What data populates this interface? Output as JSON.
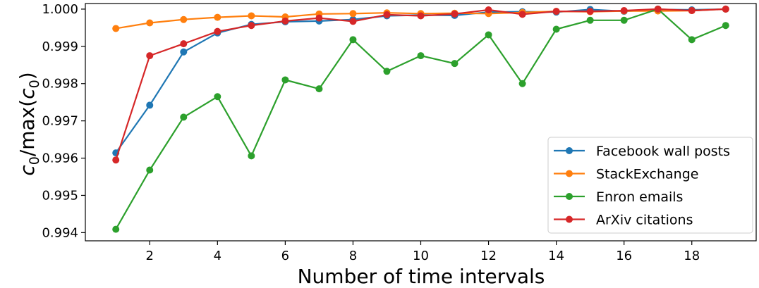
{
  "chart_data": {
    "type": "line",
    "xlabel": "Number of time intervals",
    "ylabel_base": "c",
    "ylabel_sub": "0",
    "ylabel_mid": "/max(",
    "ylabel_end": ")",
    "xlim": [
      0.1,
      19.9
    ],
    "ylim": [
      0.99378,
      1.00015
    ],
    "xticks": [
      2,
      4,
      6,
      8,
      10,
      12,
      14,
      16,
      18
    ],
    "yticks": [
      0.994,
      0.995,
      0.996,
      0.997,
      0.998,
      0.999,
      1.0
    ],
    "ytick_labels": [
      "0.994",
      "0.995",
      "0.996",
      "0.997",
      "0.998",
      "0.999",
      "1.000"
    ],
    "grid": false,
    "legend_position": "lower-right",
    "x": [
      1,
      2,
      3,
      4,
      5,
      6,
      7,
      8,
      9,
      10,
      11,
      12,
      13,
      14,
      15,
      16,
      17,
      18,
      19
    ],
    "series": [
      {
        "name": "Facebook wall posts",
        "color": "#1f77b4",
        "values": [
          0.99614,
          0.99742,
          0.99885,
          0.99936,
          0.99959,
          0.99966,
          0.99968,
          0.99972,
          0.99982,
          0.99984,
          0.99983,
          0.99992,
          0.99993,
          0.99992,
          0.99999,
          0.99994,
          0.99999,
          0.99998,
          1.0
        ]
      },
      {
        "name": "StackExchange",
        "color": "#ff7f0e",
        "values": [
          0.99948,
          0.99963,
          0.99972,
          0.99978,
          0.99982,
          0.99979,
          0.99987,
          0.99988,
          0.9999,
          0.99988,
          0.99989,
          0.99988,
          0.99991,
          0.99994,
          0.99993,
          0.99995,
          0.99995,
          0.99996,
          1.0
        ]
      },
      {
        "name": "Enron emails",
        "color": "#2ca02c",
        "values": [
          0.99409,
          0.99568,
          0.9971,
          0.99765,
          0.99606,
          0.9981,
          0.99786,
          0.99918,
          0.99833,
          0.99875,
          0.99854,
          0.99931,
          0.998,
          0.99946,
          0.9997,
          0.9997,
          1.0,
          0.99918,
          0.99956
        ]
      },
      {
        "name": "ArXiv citations",
        "color": "#d62728",
        "values": [
          0.99595,
          0.99875,
          0.99907,
          0.9994,
          0.99956,
          0.99968,
          0.99976,
          0.99967,
          0.99985,
          0.99982,
          0.99987,
          0.99998,
          0.99986,
          0.99994,
          0.99994,
          0.99996,
          1.0,
          0.99996,
          1.0
        ]
      }
    ]
  }
}
